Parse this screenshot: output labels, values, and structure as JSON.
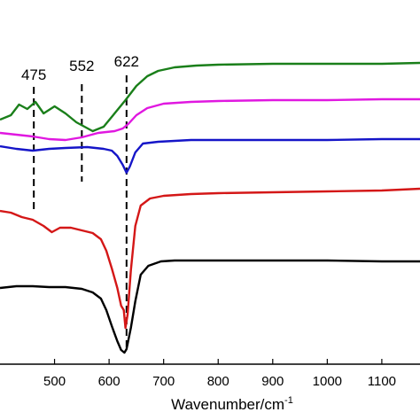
{
  "chart_data": {
    "type": "line",
    "title": "",
    "xlabel": "Wavenumber/cm",
    "xlabel_superscript": "-1",
    "ylabel": "",
    "xlim": [
      400,
      1170
    ],
    "x_ticks": [
      500,
      600,
      700,
      800,
      900,
      1000,
      1100
    ],
    "grid": false,
    "legend": "none",
    "annotations": [
      {
        "label": "475",
        "x": 462
      },
      {
        "label": "552",
        "x": 550
      },
      {
        "label": "622",
        "x": 632
      }
    ],
    "series": [
      {
        "color": "#1a7f1a",
        "points": [
          [
            400,
            135
          ],
          [
            420,
            130
          ],
          [
            435,
            118
          ],
          [
            450,
            123
          ],
          [
            465,
            115
          ],
          [
            480,
            128
          ],
          [
            500,
            120
          ],
          [
            520,
            128
          ],
          [
            540,
            138
          ],
          [
            555,
            143
          ],
          [
            570,
            148
          ],
          [
            590,
            143
          ],
          [
            610,
            128
          ],
          [
            630,
            113
          ],
          [
            650,
            97
          ],
          [
            670,
            86
          ],
          [
            690,
            80
          ],
          [
            720,
            76
          ],
          [
            760,
            74
          ],
          [
            800,
            73
          ],
          [
            900,
            72
          ],
          [
            1000,
            72
          ],
          [
            1100,
            72
          ],
          [
            1170,
            71
          ]
        ]
      },
      {
        "color": "#e018e0",
        "points": [
          [
            400,
            150
          ],
          [
            430,
            152
          ],
          [
            460,
            154
          ],
          [
            490,
            157
          ],
          [
            520,
            158
          ],
          [
            550,
            155
          ],
          [
            580,
            150
          ],
          [
            610,
            148
          ],
          [
            625,
            145
          ],
          [
            635,
            140
          ],
          [
            650,
            130
          ],
          [
            670,
            122
          ],
          [
            700,
            117
          ],
          [
            750,
            115
          ],
          [
            800,
            114
          ],
          [
            900,
            113
          ],
          [
            1000,
            113
          ],
          [
            1100,
            112
          ],
          [
            1170,
            112
          ]
        ]
      },
      {
        "color": "#1515c8",
        "points": [
          [
            400,
            165
          ],
          [
            430,
            168
          ],
          [
            460,
            170
          ],
          [
            490,
            168
          ],
          [
            520,
            167
          ],
          [
            560,
            166
          ],
          [
            590,
            168
          ],
          [
            605,
            170
          ],
          [
            615,
            176
          ],
          [
            625,
            186
          ],
          [
            632,
            195
          ],
          [
            638,
            188
          ],
          [
            648,
            172
          ],
          [
            662,
            162
          ],
          [
            690,
            160
          ],
          [
            750,
            158
          ],
          [
            800,
            158
          ],
          [
            900,
            158
          ],
          [
            1000,
            158
          ],
          [
            1100,
            157
          ],
          [
            1170,
            157
          ]
        ]
      },
      {
        "color": "#d41717",
        "points": [
          [
            400,
            238
          ],
          [
            420,
            240
          ],
          [
            440,
            245
          ],
          [
            460,
            248
          ],
          [
            480,
            255
          ],
          [
            495,
            262
          ],
          [
            510,
            257
          ],
          [
            530,
            257
          ],
          [
            550,
            260
          ],
          [
            570,
            263
          ],
          [
            585,
            270
          ],
          [
            595,
            283
          ],
          [
            605,
            303
          ],
          [
            615,
            325
          ],
          [
            622,
            345
          ],
          [
            627,
            350
          ],
          [
            630,
            370
          ],
          [
            634,
            355
          ],
          [
            640,
            305
          ],
          [
            648,
            255
          ],
          [
            658,
            232
          ],
          [
            675,
            224
          ],
          [
            700,
            221
          ],
          [
            750,
            219
          ],
          [
            800,
            218
          ],
          [
            900,
            217
          ],
          [
            1000,
            216
          ],
          [
            1100,
            215
          ],
          [
            1170,
            213
          ]
        ]
      },
      {
        "color": "#000000",
        "points": [
          [
            400,
            325
          ],
          [
            430,
            323
          ],
          [
            460,
            323
          ],
          [
            490,
            324
          ],
          [
            520,
            324
          ],
          [
            550,
            326
          ],
          [
            570,
            330
          ],
          [
            585,
            337
          ],
          [
            595,
            350
          ],
          [
            605,
            368
          ],
          [
            615,
            385
          ],
          [
            622,
            395
          ],
          [
            628,
            398
          ],
          [
            632,
            394
          ],
          [
            640,
            370
          ],
          [
            648,
            340
          ],
          [
            658,
            310
          ],
          [
            672,
            300
          ],
          [
            695,
            295
          ],
          [
            720,
            294
          ],
          [
            760,
            294
          ],
          [
            800,
            294
          ],
          [
            900,
            294
          ],
          [
            1000,
            294
          ],
          [
            1100,
            295
          ],
          [
            1170,
            295
          ]
        ]
      }
    ]
  }
}
